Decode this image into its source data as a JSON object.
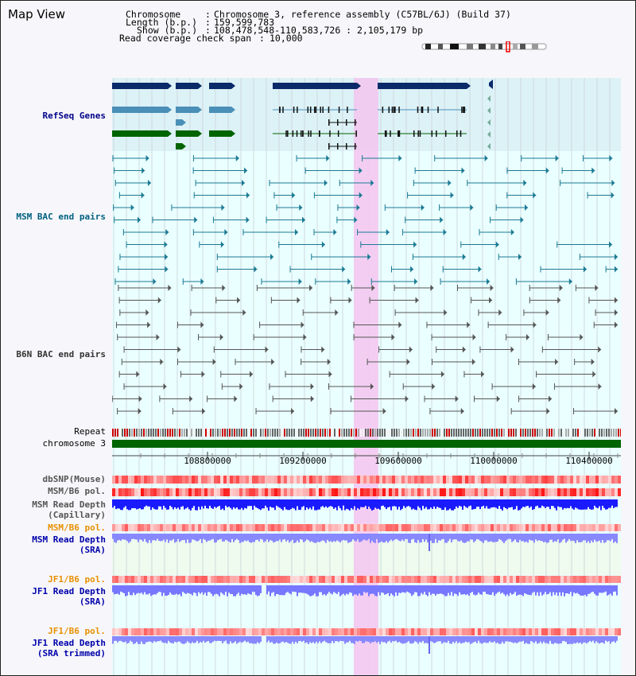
{
  "title": "Map View",
  "info": {
    "chromosome_key": "Chromosome",
    "chromosome_value": "Chromosome 3, reference assembly (C57BL/6J) (Build 37)",
    "length_key": "Length (b.p.)",
    "length_value": "159,599,783",
    "show_key": "Show (b.p.)",
    "show_value": "108,478,548-110,583,726 : 2,105,179 bp",
    "span_key": "Read coverage check span",
    "span_value": "10,000"
  },
  "tracks": {
    "refseq": "RefSeq Genes",
    "msm_bac": "MSM BAC end pairs",
    "b6n_bac": "B6N BAC end pairs",
    "repeat": "Repeat",
    "chromosome": "chromosome 3",
    "dbsnp": "dbSNP(Mouse)",
    "msm_b6_pol_1": "MSM/B6 pol.",
    "msm_depth_cap_1": "MSM Read Depth",
    "msm_depth_cap_2": "(Capillary)",
    "msm_b6_pol_2": "MSM/B6 pol.",
    "msm_depth_sra_1": "MSM Read Depth",
    "msm_depth_sra_2": "(SRA)",
    "jf1_b6_pol_1": "JF1/B6 pol.",
    "jf1_depth_sra_1": "JF1 Read Depth",
    "jf1_depth_sra_2": "(SRA)",
    "jf1_b6_pol_2": "JF1/B6 pol.",
    "jf1_depth_trim_1": "JF1 Read Depth",
    "jf1_depth_trim_2": "(SRA trimmed)"
  },
  "axis": {
    "ticks": [
      "108800000",
      "109200000",
      "109600000",
      "110000000",
      "110400000"
    ]
  },
  "colors": {
    "refseq_label": "#00008b",
    "msm_label": "#006080",
    "b6n_label": "#333333",
    "pol_label": "#e89000",
    "depth_label": "#0000aa",
    "highlight": "#f5c6f0",
    "gene_dark": "#0a2a6a",
    "gene_mid": "#4a8fb8",
    "gene_green": "#006400"
  }
}
